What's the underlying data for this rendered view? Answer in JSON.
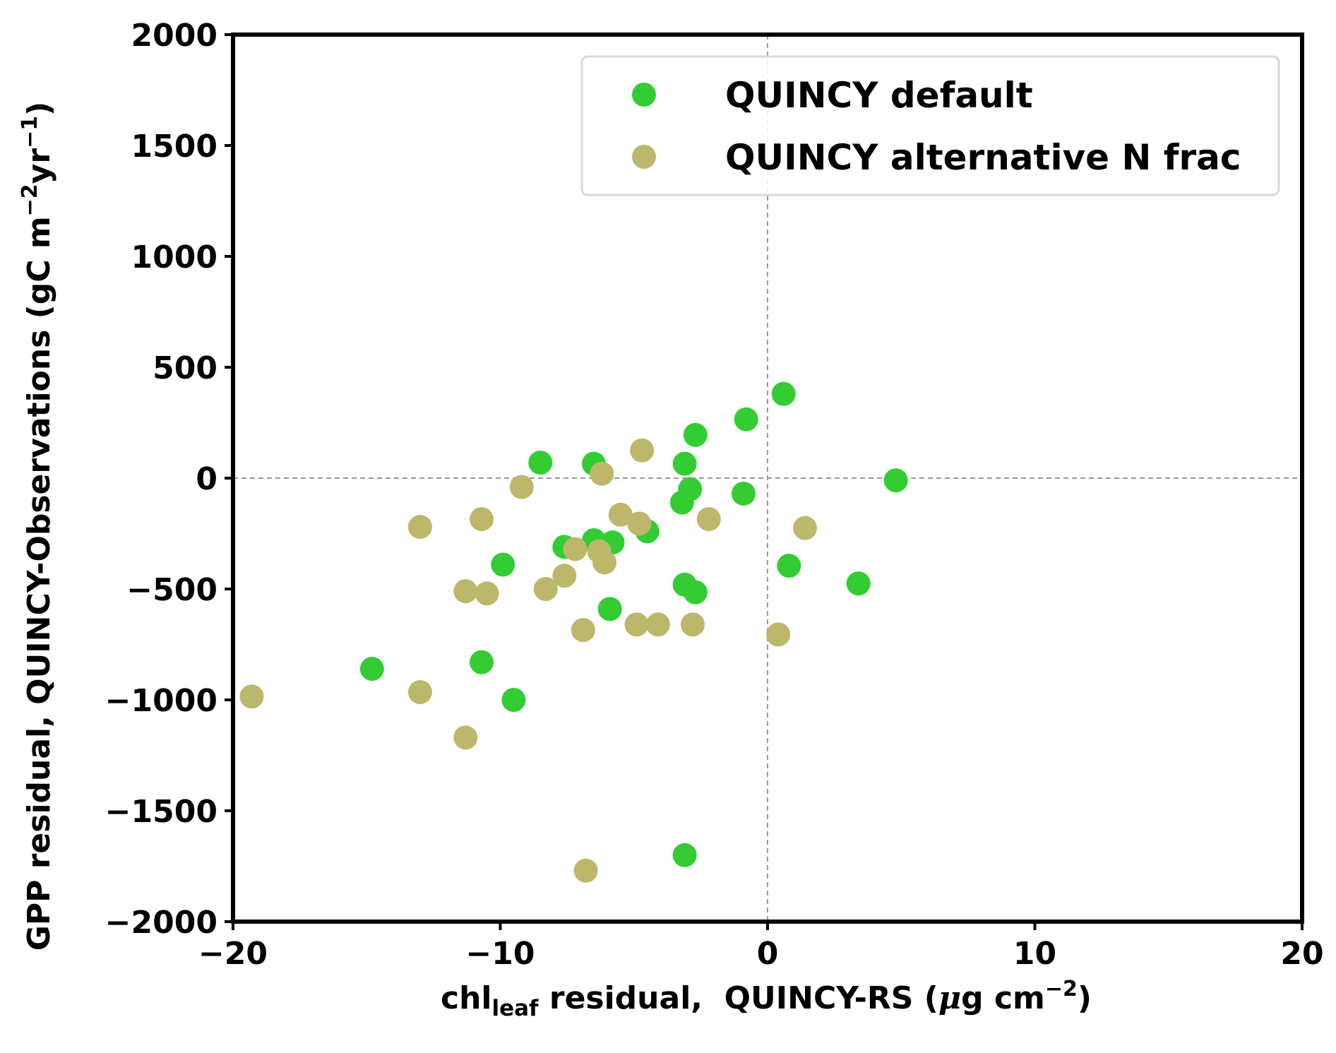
{
  "chart_data": {
    "type": "scatter",
    "title": "",
    "xlabel": {
      "main": "chl",
      "subscript": "leaf",
      "rest": " residual,  QUINCY-RS (",
      "mu": "μ",
      "unit": "g cm",
      "exponent": "−2",
      "close": ")"
    },
    "ylabel": {
      "prefix": "GPP residual,  QUINCY-Observations (gC m",
      "exp1": "−2",
      "mid": "yr",
      "exp2": "−1",
      "close": ")"
    },
    "xlim": [
      -20,
      20
    ],
    "ylim": [
      -2000,
      2000
    ],
    "xticks": [
      -20,
      -10,
      0,
      10,
      20
    ],
    "xtick_labels": [
      "−20",
      "−10",
      "0",
      "10",
      "20"
    ],
    "yticks": [
      2000,
      1500,
      1000,
      500,
      0,
      -500,
      -1000,
      -1500,
      -2000
    ],
    "ytick_labels": [
      "2000",
      "1500",
      "1000",
      "500",
      "0",
      "−500",
      "−1000",
      "−1500",
      "−2000"
    ],
    "reference_lines": {
      "x": 0,
      "y": 0,
      "style": "dashed",
      "color": "#999999"
    },
    "grid": false,
    "legend_position": "top-right",
    "series": [
      {
        "name": "QUINCY default",
        "color": "#33cc33",
        "points": [
          [
            -14.8,
            -860
          ],
          [
            -10.7,
            -830
          ],
          [
            -9.5,
            -1000
          ],
          [
            -9.9,
            -390
          ],
          [
            -8.5,
            70
          ],
          [
            -7.6,
            -310
          ],
          [
            -6.5,
            -280
          ],
          [
            -6.5,
            65
          ],
          [
            -5.8,
            -290
          ],
          [
            -5.9,
            -590
          ],
          [
            -4.5,
            -240
          ],
          [
            -3.2,
            -110
          ],
          [
            -3.1,
            65
          ],
          [
            -2.9,
            -50
          ],
          [
            -2.7,
            195
          ],
          [
            -3.1,
            -480
          ],
          [
            -2.7,
            -515
          ],
          [
            -0.9,
            -70
          ],
          [
            -0.8,
            265
          ],
          [
            0.6,
            380
          ],
          [
            0.8,
            -395
          ],
          [
            3.4,
            -475
          ],
          [
            4.8,
            -10
          ],
          [
            -3.1,
            -1700
          ]
        ]
      },
      {
        "name": "QUINCY alternative N frac",
        "color": "#bdb76b",
        "points": [
          [
            -19.3,
            -985
          ],
          [
            -13.0,
            -965
          ],
          [
            -13.0,
            -220
          ],
          [
            -11.3,
            -1170
          ],
          [
            -11.3,
            -510
          ],
          [
            -10.7,
            -185
          ],
          [
            -10.5,
            -520
          ],
          [
            -9.2,
            -40
          ],
          [
            -8.3,
            -500
          ],
          [
            -7.6,
            -440
          ],
          [
            -7.2,
            -320
          ],
          [
            -6.9,
            -685
          ],
          [
            -6.3,
            -330
          ],
          [
            -6.1,
            -380
          ],
          [
            -6.2,
            20
          ],
          [
            -5.5,
            -165
          ],
          [
            -4.8,
            -205
          ],
          [
            -4.7,
            125
          ],
          [
            -4.9,
            -660
          ],
          [
            -4.1,
            -660
          ],
          [
            -2.8,
            -660
          ],
          [
            -2.2,
            -185
          ],
          [
            0.4,
            -705
          ],
          [
            1.4,
            -225
          ],
          [
            -6.8,
            -1770
          ]
        ]
      }
    ]
  }
}
